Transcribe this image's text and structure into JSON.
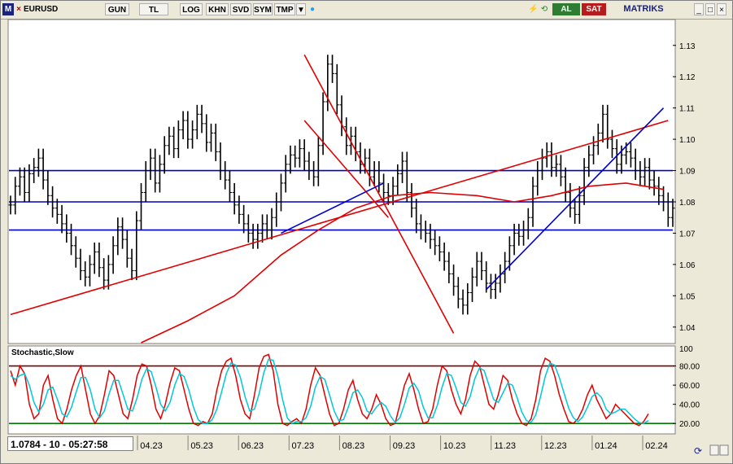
{
  "toolbar": {
    "m_label": "M",
    "symbol": "EURUSD",
    "buttons": [
      "GUN",
      "TL",
      "LOG",
      "KHN",
      "SVD",
      "SYM",
      "TMP"
    ],
    "al_label": "AL",
    "sat_label": "SAT",
    "brand": "MATRIKS",
    "colors": {
      "al": "#2e7d32",
      "sat": "#b71c1c",
      "brand": "#1a237e"
    }
  },
  "status_readout": "1.0784 - 10 - 05:27:58",
  "chart_data": [
    {
      "type": "line",
      "title": "",
      "yticks": [
        1.04,
        1.05,
        1.06,
        1.07,
        1.08,
        1.09,
        1.1,
        1.11,
        1.12,
        1.13
      ],
      "ylim": [
        1.035,
        1.138
      ],
      "horizontal_levels": [
        1.071,
        1.08,
        1.09
      ],
      "x_ticks": [
        "04.23",
        "05.23",
        "06.23",
        "07.23",
        "08.23",
        "09.23",
        "10.23",
        "11.23",
        "12.23",
        "01.24",
        "02.24"
      ],
      "series": [
        {
          "color": "#000000",
          "values": [
            1.079,
            1.085,
            1.088,
            1.083,
            1.089,
            1.091,
            1.094,
            1.087,
            1.082,
            1.078,
            1.076,
            1.073,
            1.07,
            1.066,
            1.062,
            1.058,
            1.056,
            1.06,
            1.064,
            1.059,
            1.055,
            1.06,
            1.066,
            1.072,
            1.068,
            1.062,
            1.058,
            1.074,
            1.083,
            1.09,
            1.094,
            1.086,
            1.092,
            1.098,
            1.101,
            1.097,
            1.103,
            1.106,
            1.1,
            1.103,
            1.108,
            1.105,
            1.099,
            1.102,
            1.096,
            1.09,
            1.087,
            1.083,
            1.079,
            1.076,
            1.073,
            1.07,
            1.068,
            1.07,
            1.073,
            1.071,
            1.075,
            1.08,
            1.086,
            1.092,
            1.095,
            1.094,
            1.097,
            1.093,
            1.09,
            1.088,
            1.098,
            1.112,
            1.124,
            1.121,
            1.111,
            1.104,
            1.098,
            1.101,
            1.096,
            1.092,
            1.094,
            1.088,
            1.09,
            1.086,
            1.083,
            1.082,
            1.085,
            1.089,
            1.093,
            1.083,
            1.078,
            1.073,
            1.071,
            1.07,
            1.068,
            1.066,
            1.064,
            1.061,
            1.057,
            1.053,
            1.049,
            1.047,
            1.051,
            1.056,
            1.061,
            1.058,
            1.054,
            1.052,
            1.054,
            1.057,
            1.061,
            1.066,
            1.07,
            1.069,
            1.071,
            1.075,
            1.085,
            1.09,
            1.094,
            1.096,
            1.091,
            1.092,
            1.088,
            1.083,
            1.078,
            1.076,
            1.082,
            1.091,
            1.095,
            1.098,
            1.102,
            1.108,
            1.1,
            1.097,
            1.092,
            1.095,
            1.096,
            1.094,
            1.09,
            1.088,
            1.091,
            1.087,
            1.085,
            1.082,
            1.08,
            1.075,
            1.078
          ]
        }
      ],
      "overlays": [
        {
          "kind": "trendline",
          "color": "#e00000",
          "points": [
            [
              0,
              1.044
            ],
            [
              141,
              1.106
            ]
          ]
        },
        {
          "kind": "trendline",
          "color": "#e00000",
          "points": [
            [
              63,
              1.127
            ],
            [
              95,
              1.038
            ]
          ]
        },
        {
          "kind": "trendline",
          "color": "#e00000",
          "points": [
            [
              63,
              1.106
            ],
            [
              81,
              1.075
            ]
          ]
        },
        {
          "kind": "trendline",
          "color": "#0000cc",
          "points": [
            [
              102,
              1.052
            ],
            [
              140,
              1.11
            ]
          ]
        },
        {
          "kind": "trendline",
          "color": "#0000cc",
          "points": [
            [
              58,
              1.07
            ],
            [
              80,
              1.086
            ]
          ]
        },
        {
          "kind": "moving_average",
          "color": "#e00000",
          "values": [
            [
              28,
              1.035
            ],
            [
              38,
              1.042
            ],
            [
              48,
              1.05
            ],
            [
              58,
              1.063
            ],
            [
              66,
              1.071
            ],
            [
              74,
              1.078
            ],
            [
              82,
              1.082
            ],
            [
              90,
              1.083
            ],
            [
              100,
              1.082
            ],
            [
              108,
              1.08
            ],
            [
              116,
              1.082
            ],
            [
              124,
              1.085
            ],
            [
              132,
              1.086
            ],
            [
              140,
              1.084
            ]
          ]
        }
      ]
    },
    {
      "type": "line",
      "title": "Stochastic,Slow",
      "yticks": [
        20,
        40,
        60,
        80
      ],
      "top_label": "100",
      "ylim": [
        10,
        100
      ],
      "levels": [
        {
          "value": 80,
          "color": "#7a0000"
        },
        {
          "value": 20,
          "color": "#007a00"
        }
      ],
      "series": [
        {
          "color": "#e00000",
          "values": [
            75,
            60,
            80,
            72,
            40,
            25,
            30,
            60,
            70,
            45,
            25,
            20,
            35,
            55,
            70,
            80,
            55,
            30,
            20,
            28,
            50,
            75,
            70,
            50,
            30,
            25,
            45,
            70,
            82,
            80,
            60,
            35,
            25,
            40,
            62,
            78,
            75,
            55,
            35,
            20,
            18,
            22,
            20,
            30,
            55,
            75,
            85,
            88,
            70,
            45,
            30,
            25,
            50,
            78,
            90,
            92,
            75,
            40,
            20,
            18,
            22,
            25,
            20,
            35,
            60,
            78,
            70,
            50,
            30,
            18,
            20,
            35,
            55,
            65,
            45,
            30,
            25,
            35,
            50,
            40,
            25,
            18,
            20,
            40,
            60,
            72,
            55,
            35,
            20,
            22,
            35,
            60,
            80,
            75,
            55,
            40,
            30,
            45,
            70,
            85,
            80,
            60,
            40,
            35,
            50,
            70,
            65,
            45,
            30,
            20,
            18,
            25,
            45,
            75,
            88,
            85,
            70,
            50,
            35,
            22,
            20,
            25,
            35,
            50,
            60,
            45,
            35,
            25,
            30,
            40,
            35,
            30,
            25,
            20,
            18,
            22,
            30
          ]
        },
        {
          "color": "#00c8d8",
          "values": [
            70,
            66,
            70,
            72,
            60,
            42,
            32,
            40,
            55,
            58,
            45,
            30,
            27,
            37,
            53,
            68,
            68,
            55,
            35,
            26,
            33,
            51,
            65,
            65,
            50,
            35,
            33,
            47,
            66,
            77,
            74,
            58,
            40,
            33,
            42,
            60,
            72,
            69,
            55,
            37,
            24,
            20,
            20,
            24,
            35,
            53,
            72,
            83,
            81,
            68,
            48,
            33,
            35,
            51,
            73,
            87,
            86,
            69,
            45,
            26,
            20,
            22,
            22,
            26,
            38,
            58,
            69,
            66,
            50,
            33,
            23,
            24,
            37,
            52,
            55,
            47,
            33,
            30,
            37,
            42,
            38,
            28,
            21,
            26,
            40,
            57,
            62,
            54,
            37,
            26,
            26,
            39,
            58,
            72,
            70,
            57,
            42,
            38,
            48,
            67,
            78,
            75,
            60,
            45,
            42,
            52,
            62,
            60,
            47,
            32,
            23,
            21,
            29,
            48,
            69,
            83,
            81,
            68,
            52,
            36,
            26,
            22,
            27,
            37,
            48,
            52,
            47,
            35,
            30,
            32,
            35,
            35,
            30,
            25,
            21,
            20,
            23
          ]
        }
      ]
    }
  ]
}
